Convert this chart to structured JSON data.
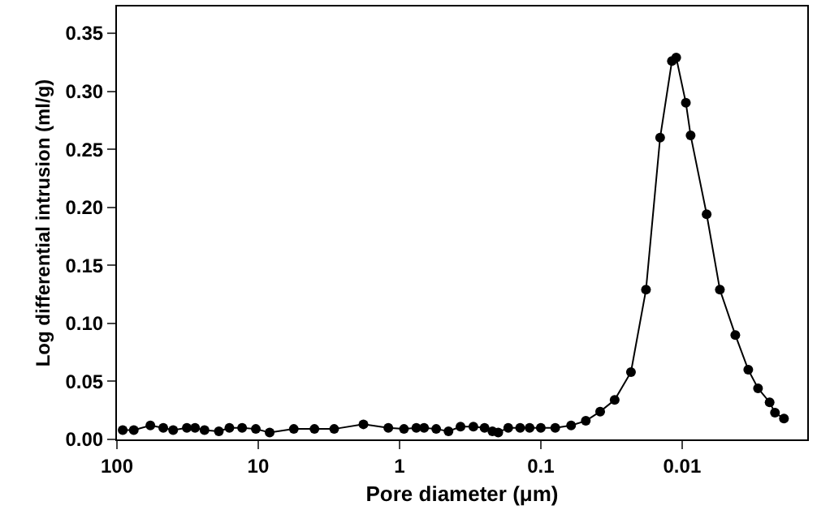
{
  "chart_data": {
    "type": "line",
    "xlabel": "Pore diameter (μm)",
    "ylabel": "Log differential intrusion (ml/g)",
    "log": "x",
    "xlim": [
      100,
      0.0013
    ],
    "xticks": [
      100,
      10,
      1,
      0.1,
      0.01
    ],
    "ylim": [
      0,
      0.373
    ],
    "yticks": [
      {
        "value": 0,
        "label": "0.00"
      },
      {
        "value": 0.05,
        "label": "0.05"
      },
      {
        "value": 0.1,
        "label": "0.10"
      },
      {
        "value": 0.15,
        "label": "0.15"
      },
      {
        "value": 0.2,
        "label": "0.20"
      },
      {
        "value": 0.25,
        "label": "0.25"
      },
      {
        "value": 0.3,
        "label": "0.30"
      },
      {
        "value": 0.35,
        "label": "0.35"
      }
    ],
    "grid": false,
    "marker": "circle",
    "line_style": "solid",
    "series": [
      {
        "color": "#000000",
        "x": [
          91,
          76,
          58,
          47,
          40,
          32,
          28,
          24,
          19,
          16,
          13,
          10.4,
          8.3,
          5.6,
          4.0,
          2.9,
          1.8,
          1.2,
          0.93,
          0.76,
          0.67,
          0.55,
          0.45,
          0.37,
          0.3,
          0.25,
          0.22,
          0.2,
          0.17,
          0.14,
          0.12,
          0.1,
          0.079,
          0.061,
          0.048,
          0.038,
          0.03,
          0.023,
          0.018,
          0.0143,
          0.0118,
          0.011,
          0.0094,
          0.0087,
          0.0067,
          0.0054,
          0.0042,
          0.0034,
          0.0029,
          0.0024,
          0.0022,
          0.0019
        ],
        "values": [
          0.008,
          0.008,
          0.012,
          0.01,
          0.008,
          0.01,
          0.01,
          0.008,
          0.007,
          0.01,
          0.01,
          0.009,
          0.006,
          0.009,
          0.009,
          0.009,
          0.013,
          0.01,
          0.009,
          0.01,
          0.01,
          0.009,
          0.007,
          0.011,
          0.011,
          0.01,
          0.007,
          0.006,
          0.01,
          0.01,
          0.01,
          0.01,
          0.01,
          0.012,
          0.016,
          0.024,
          0.034,
          0.058,
          0.129,
          0.26,
          0.326,
          0.329,
          0.29,
          0.262,
          0.194,
          0.129,
          0.09,
          0.06,
          0.044,
          0.032,
          0.023,
          0.018
        ]
      }
    ]
  }
}
